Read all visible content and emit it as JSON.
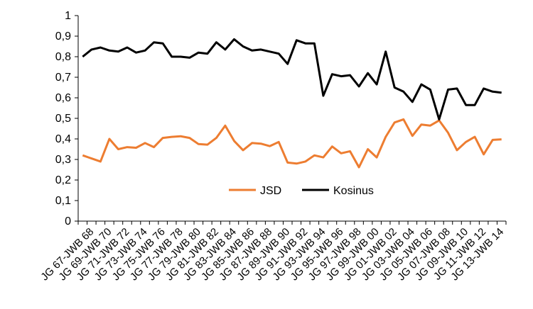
{
  "chart_data": {
    "type": "line",
    "title": "",
    "xlabel": "",
    "ylabel": "",
    "ylim": [
      0,
      1
    ],
    "y_ticks": [
      "0",
      "0,1",
      "0,2",
      "0,3",
      "0,4",
      "0,5",
      "0,6",
      "0,7",
      "0,8",
      "0,9",
      "1"
    ],
    "grid": false,
    "legend_position": "inside-center",
    "x_labels": [
      "JG 67-JWB 68",
      "JG 69-JWB 70",
      "JG 71-JWB 72",
      "JG 73-JWB 74",
      "JG 75-JWB 76",
      "JG 77-JWB 78",
      "JG 79-JWB 80",
      "JG 81-JWB 82",
      "JG 83-JWB 84",
      "JG 85-JWB 86",
      "JG 87-JWB 88",
      "JG 89-JWB 90",
      "JG 91-JWB 92",
      "JG 93-JWB 94",
      "JG 95-JWB 96",
      "JG 97-JWB 98",
      "JG 99-JWB 00",
      "JG 01-JWB 02",
      "JG 03-JWB 04",
      "JG 05-JWB 06",
      "JG 07-JWB 08",
      "JG 09-JWB 10",
      "JG 11-JWB 12",
      "JG 13-JWB 14"
    ],
    "x_label_step": 2,
    "series": [
      {
        "name": "JSD",
        "color": "#ED7D31",
        "values": [
          0.32,
          0.305,
          0.29,
          0.4,
          0.35,
          0.36,
          0.357,
          0.38,
          0.36,
          0.405,
          0.41,
          0.413,
          0.405,
          0.375,
          0.372,
          0.405,
          0.465,
          0.39,
          0.345,
          0.38,
          0.377,
          0.365,
          0.385,
          0.285,
          0.28,
          0.29,
          0.32,
          0.31,
          0.363,
          0.33,
          0.34,
          0.262,
          0.35,
          0.31,
          0.41,
          0.48,
          0.495,
          0.415,
          0.47,
          0.465,
          0.49,
          0.43,
          0.345,
          0.385,
          0.41,
          0.325,
          0.395,
          0.398
        ]
      },
      {
        "name": "Kosinus",
        "color": "#000000",
        "values": [
          0.8,
          0.835,
          0.845,
          0.83,
          0.825,
          0.845,
          0.82,
          0.83,
          0.87,
          0.865,
          0.8,
          0.8,
          0.795,
          0.82,
          0.815,
          0.87,
          0.835,
          0.885,
          0.85,
          0.83,
          0.835,
          0.825,
          0.815,
          0.765,
          0.88,
          0.865,
          0.865,
          0.61,
          0.715,
          0.705,
          0.71,
          0.655,
          0.72,
          0.665,
          0.825,
          0.65,
          0.63,
          0.58,
          0.665,
          0.64,
          0.495,
          0.64,
          0.645,
          0.565,
          0.565,
          0.645,
          0.63,
          0.625
        ]
      }
    ]
  }
}
